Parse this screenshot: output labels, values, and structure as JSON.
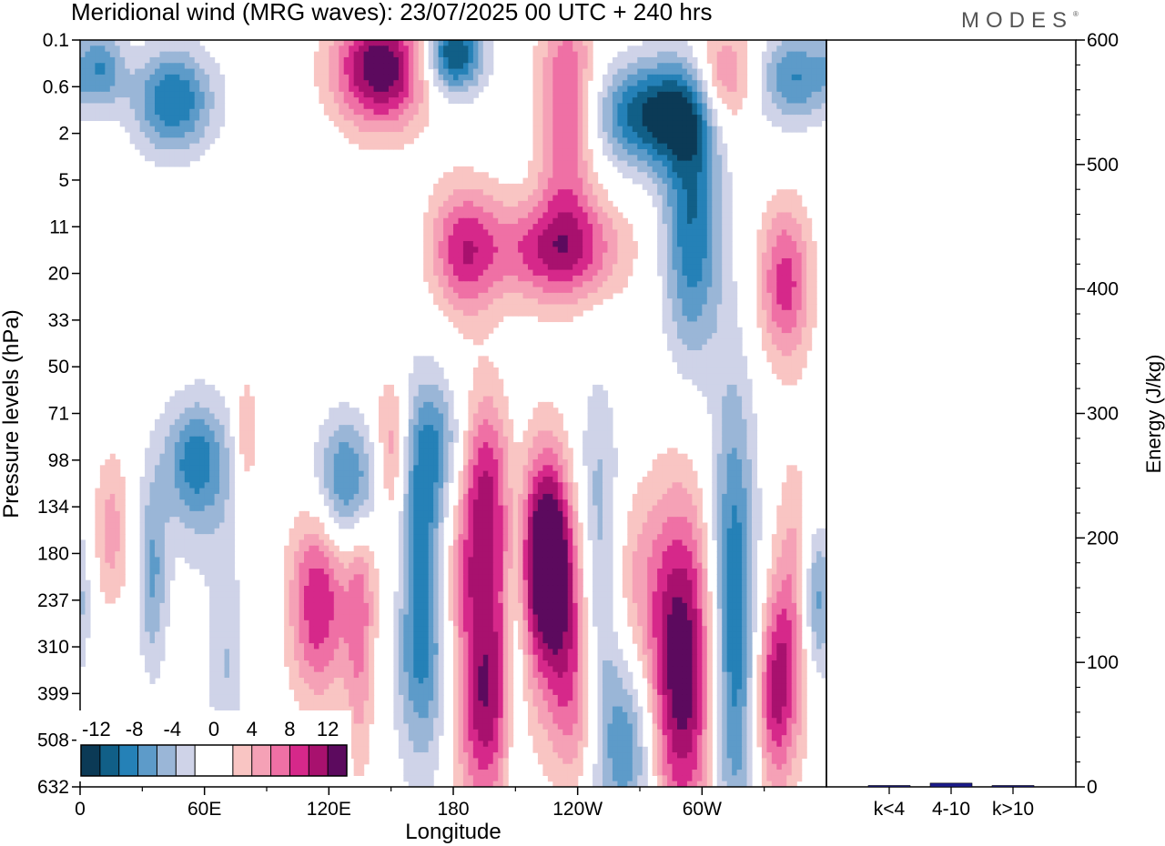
{
  "title": "Meridional wind (MRG waves):  23/07/2025  00 UTC  + 240 hrs",
  "brand": "MODES",
  "brand_mark": "®",
  "colors": {
    "neg": [
      "#0b3a56",
      "#115f87",
      "#2581b7",
      "#5d9bc9",
      "#9ab6d7",
      "#cfd3e8"
    ],
    "zero": "#ffffff",
    "pos": [
      "#f9c5c3",
      "#f5a1b6",
      "#ef70a5",
      "#d6288a",
      "#a8116e",
      "#5c0a5e"
    ],
    "bar": "#1c1c8c"
  },
  "chart_data": [
    {
      "type": "heatmap",
      "title": "Meridional wind (MRG waves)",
      "xlabel": "Longitude",
      "ylabel": "Pressure levels (hPa)",
      "x_ticks": [
        "0",
        "60E",
        "120E",
        "180",
        "120W",
        "60W"
      ],
      "x_range": [
        0,
        360
      ],
      "y_ticks": [
        "0.1",
        "0.6",
        "2",
        "5",
        "11",
        "20",
        "33",
        "50",
        "71",
        "98",
        "134",
        "180",
        "237",
        "310",
        "399",
        "508",
        "632"
      ],
      "colorbar": {
        "labels": [
          "-12",
          "-8",
          "-4",
          "0",
          "4",
          "8",
          "12"
        ],
        "levels": [
          -14,
          -12,
          -10,
          -8,
          -6,
          -4,
          -2,
          2,
          4,
          6,
          8,
          10,
          12,
          14
        ]
      },
      "features": [
        {
          "lon": 10,
          "lev": 0.6,
          "v": -7,
          "sx": 8,
          "sy": 0.6
        },
        {
          "lon": 45,
          "lev": 1.3,
          "v": -10,
          "sx": 14,
          "sy": 0.8
        },
        {
          "lon": 145,
          "lev": 0.6,
          "v": 14,
          "sx": 16,
          "sy": 0.9
        },
        {
          "lon": 180,
          "lev": 0.3,
          "v": -13,
          "sx": 10,
          "sy": 0.6
        },
        {
          "lon": 235,
          "lev": 1.5,
          "v": 9,
          "sx": 10,
          "sy": 1.8
        },
        {
          "lon": 280,
          "lev": 1.6,
          "v": -13,
          "sx": 22,
          "sy": 0.8
        },
        {
          "lon": 310,
          "lev": 1.0,
          "v": 9,
          "sx": 10,
          "sy": 0.9
        },
        {
          "lon": 345,
          "lev": 0.8,
          "v": -8,
          "sx": 12,
          "sy": 0.7
        },
        {
          "lon": 185,
          "lev": 4.5,
          "v": 9,
          "sx": 12,
          "sy": 1.0
        },
        {
          "lon": 230,
          "lev": 4.5,
          "v": 10,
          "sx": 22,
          "sy": 0.8
        },
        {
          "lon": 295,
          "lev": 4.0,
          "v": -10,
          "sx": 10,
          "sy": 2.0
        },
        {
          "lon": 340,
          "lev": 5.2,
          "v": 9,
          "sx": 9,
          "sy": 1.2
        },
        {
          "lon": 245,
          "lev": 11.5,
          "v": 7,
          "sx": 20,
          "sy": 1.5
        },
        {
          "lon": 175,
          "lev": 11.5,
          "v": 5,
          "sx": 20,
          "sy": 1.0
        },
        {
          "lon": 60,
          "lev": 9.5,
          "v": -4,
          "sx": 15,
          "sy": 1.5
        },
        {
          "lon": 245,
          "lev": 14.0,
          "v": 4,
          "sx": 18,
          "sy": 1.5
        },
        {
          "lon": 175,
          "lev": 8.5,
          "v": -4,
          "sx": 10,
          "sy": 0.8
        },
        {
          "lon": 55,
          "lev": 9.0,
          "v": -6,
          "sx": 10,
          "sy": 0.8
        },
        {
          "lon": 130,
          "lev": 9.5,
          "v": -10,
          "sx": 12,
          "sy": 1.0
        },
        {
          "lon": 150,
          "lev": 9.0,
          "v": 8,
          "sx": 6,
          "sy": 1.2
        },
        {
          "lon": 165,
          "lev": 11.5,
          "v": -13,
          "sx": 9,
          "sy": 2.5
        },
        {
          "lon": 195,
          "lev": 9.5,
          "v": 10,
          "sx": 9,
          "sy": 1.4
        },
        {
          "lon": 225,
          "lev": 11.0,
          "v": 14,
          "sx": 8,
          "sy": 1.6
        },
        {
          "lon": 250,
          "lev": 12.0,
          "v": -12,
          "sx": 8,
          "sy": 2.5
        },
        {
          "lon": 290,
          "lev": 13.5,
          "v": 14,
          "sx": 12,
          "sy": 2.5
        },
        {
          "lon": 315,
          "lev": 12.5,
          "v": -11,
          "sx": 8,
          "sy": 3.5
        },
        {
          "lon": 345,
          "lev": 12.0,
          "v": 6,
          "sx": 7,
          "sy": 2.0
        },
        {
          "lon": 355,
          "lev": 12.0,
          "v": -8,
          "sx": 6,
          "sy": 1.2
        },
        {
          "lon": 115,
          "lev": 12.0,
          "v": 10,
          "sx": 10,
          "sy": 1.5
        },
        {
          "lon": 135,
          "lev": 12.5,
          "v": 6,
          "sx": 5,
          "sy": 2.2
        },
        {
          "lon": 195,
          "lev": 14.0,
          "v": 12,
          "sx": 10,
          "sy": 1.8
        },
        {
          "lon": 210,
          "lev": 13.0,
          "v": -5,
          "sx": 4,
          "sy": 2.5
        },
        {
          "lon": 265,
          "lev": 15.0,
          "v": -9,
          "sx": 10,
          "sy": 1.5
        },
        {
          "lon": 240,
          "lev": 14.0,
          "v": 5,
          "sx": 9,
          "sy": 1.5
        },
        {
          "lon": 335,
          "lev": 14.0,
          "v": 10,
          "sx": 7,
          "sy": 1.5
        },
        {
          "lon": 15,
          "lev": 10.5,
          "v": 5,
          "sx": 6,
          "sy": 1.2
        },
        {
          "lon": 35,
          "lev": 11.5,
          "v": -6,
          "sx": 5,
          "sy": 1.5
        },
        {
          "lon": 70,
          "lev": 13.5,
          "v": -4,
          "sx": 6,
          "sy": 1.5
        },
        {
          "lon": 80,
          "lev": 8.5,
          "v": 5,
          "sx": 4,
          "sy": 1.0
        }
      ]
    },
    {
      "type": "bar",
      "ylabel": "Energy (J/kg)",
      "ylim": [
        0,
        600
      ],
      "y_ticks": [
        "0",
        "100",
        "200",
        "300",
        "400",
        "500",
        "600"
      ],
      "categories": [
        "k<4",
        "4-10",
        "k>10"
      ],
      "values": [
        0.5,
        3,
        0.5
      ]
    }
  ]
}
